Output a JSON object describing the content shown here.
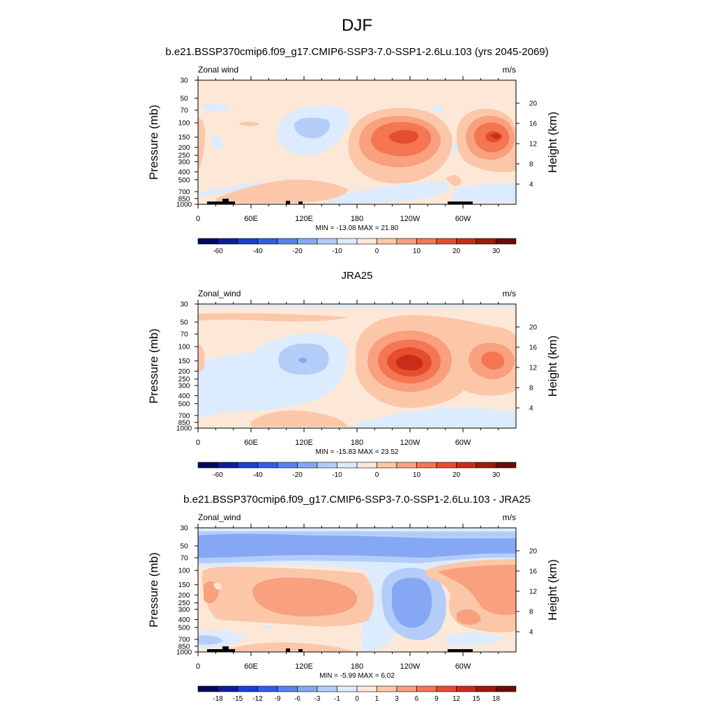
{
  "figure": {
    "title": "DJF"
  },
  "panels": [
    {
      "id": "model",
      "title": "b.e21.BSSP370cmip6.f09_g17.CMIP6-SSP3-7.0-SSP1-2.6Lu.103 (yrs 2045-2069)",
      "left_label": "Zonal wind",
      "right_label": "m/s",
      "stats": "MIN = -13.08  MAX =  21.80",
      "colorbar_ticks": [
        "-60",
        "-40",
        "-20",
        "-10",
        "0",
        "10",
        "20",
        "30"
      ],
      "colorbar_colors": [
        "#02075f",
        "#0c1f99",
        "#1b3fd3",
        "#2f5ee8",
        "#5584f0",
        "#86a8f4",
        "#b4cdf8",
        "#dcebfd",
        "#fde8d8",
        "#fcc7a9",
        "#f9a07e",
        "#f47653",
        "#e64d2d",
        "#c72d17",
        "#9e1a0c",
        "#6e0b05"
      ]
    },
    {
      "id": "obs",
      "title": "JRA25",
      "left_label": "Zonal_wind",
      "right_label": "m/s",
      "stats": "MIN = -15.83  MAX =  23.52",
      "colorbar_ticks": [
        "-60",
        "-40",
        "-20",
        "-10",
        "0",
        "10",
        "20",
        "30"
      ],
      "colorbar_colors": [
        "#02075f",
        "#0c1f99",
        "#1b3fd3",
        "#2f5ee8",
        "#5584f0",
        "#86a8f4",
        "#b4cdf8",
        "#dcebfd",
        "#fde8d8",
        "#fcc7a9",
        "#f9a07e",
        "#f47653",
        "#e64d2d",
        "#c72d17",
        "#9e1a0c",
        "#6e0b05"
      ]
    },
    {
      "id": "diff",
      "title": "b.e21.BSSP370cmip6.f09_g17.CMIP6-SSP3-7.0-SSP1-2.6Lu.103 - JRA25",
      "left_label": "Zonal_wind",
      "right_label": "m/s",
      "stats": "MIN =  -5.99  MAX =   6.02",
      "colorbar_ticks": [
        "-18",
        "-15",
        "-12",
        "-9",
        "-6",
        "-3",
        "-1",
        "0",
        "1",
        "3",
        "6",
        "9",
        "12",
        "15",
        "18"
      ],
      "colorbar_colors": [
        "#02075f",
        "#0c1f99",
        "#1b3fd3",
        "#2f5ee8",
        "#5584f0",
        "#86a8f4",
        "#b4cdf8",
        "#dcebfd",
        "#fde8d8",
        "#fcc7a9",
        "#f9a07e",
        "#f47653",
        "#e64d2d",
        "#c72d17",
        "#9e1a0c",
        "#6e0b05"
      ]
    }
  ],
  "chart_data": [
    {
      "type": "heatmap",
      "title": "b.e21.BSSP370cmip6.f09_g17.CMIP6-SSP3-7.0-SSP1-2.6Lu.103 (yrs 2045-2069)",
      "variable": "Zonal wind",
      "units": "m/s",
      "xlabel": "",
      "ylabel": "Pressure (mb)",
      "ylabel_right": "Height (km)",
      "x_ticks": [
        "0",
        "60E",
        "120E",
        "180",
        "120W",
        "60W"
      ],
      "y_ticks": [
        "30",
        "50",
        "70",
        "100",
        "150",
        "200",
        "250",
        "300",
        "400",
        "500",
        "700",
        "850",
        "1000"
      ],
      "y_right_ticks": [
        "20",
        "16",
        "12",
        "8",
        "4"
      ],
      "y_scale": "log",
      "ylim": [
        1000,
        30
      ],
      "xlim": [
        0,
        360
      ],
      "min": -13.08,
      "max": 21.8,
      "features": [
        {
          "kind": "max",
          "lon": 225,
          "p": 150,
          "value": 21.8
        },
        {
          "kind": "max",
          "lon": 335,
          "p": 150,
          "value": 20
        },
        {
          "kind": "min",
          "lon": 135,
          "p": 120,
          "value": -13.08
        }
      ]
    },
    {
      "type": "heatmap",
      "title": "JRA25",
      "variable": "Zonal_wind",
      "units": "m/s",
      "xlabel": "",
      "ylabel": "Pressure (mb)",
      "ylabel_right": "Height (km)",
      "x_ticks": [
        "0",
        "60E",
        "120E",
        "180",
        "120W",
        "60W"
      ],
      "y_ticks": [
        "30",
        "50",
        "70",
        "100",
        "150",
        "200",
        "250",
        "300",
        "400",
        "500",
        "700",
        "850",
        "1000"
      ],
      "y_right_ticks": [
        "20",
        "16",
        "12",
        "8",
        "4"
      ],
      "y_scale": "log",
      "ylim": [
        1000,
        30
      ],
      "xlim": [
        0,
        360
      ],
      "min": -15.83,
      "max": 23.52,
      "features": [
        {
          "kind": "max",
          "lon": 235,
          "p": 150,
          "value": 23.52
        },
        {
          "kind": "max",
          "lon": 330,
          "p": 150,
          "value": 18
        },
        {
          "kind": "min",
          "lon": 118,
          "p": 150,
          "value": -15.83
        }
      ]
    },
    {
      "type": "heatmap",
      "title": "b.e21.BSSP370cmip6.f09_g17.CMIP6-SSP3-7.0-SSP1-2.6Lu.103 - JRA25",
      "variable": "Zonal_wind",
      "units": "m/s",
      "xlabel": "",
      "ylabel": "Pressure (mb)",
      "ylabel_right": "Height (km)",
      "x_ticks": [
        "0",
        "60E",
        "120E",
        "180",
        "120W",
        "60W"
      ],
      "y_ticks": [
        "30",
        "50",
        "70",
        "100",
        "150",
        "200",
        "250",
        "300",
        "400",
        "500",
        "700",
        "850",
        "1000"
      ],
      "y_right_ticks": [
        "20",
        "16",
        "12",
        "8",
        "4"
      ],
      "y_scale": "log",
      "ylim": [
        1000,
        30
      ],
      "xlim": [
        0,
        360
      ],
      "min": -5.99,
      "max": 6.02,
      "features": [
        {
          "kind": "min",
          "lon": 225,
          "p": 200,
          "value": -5.99
        },
        {
          "kind": "max",
          "lon": 340,
          "p": 150,
          "value": 6.02
        }
      ]
    }
  ]
}
